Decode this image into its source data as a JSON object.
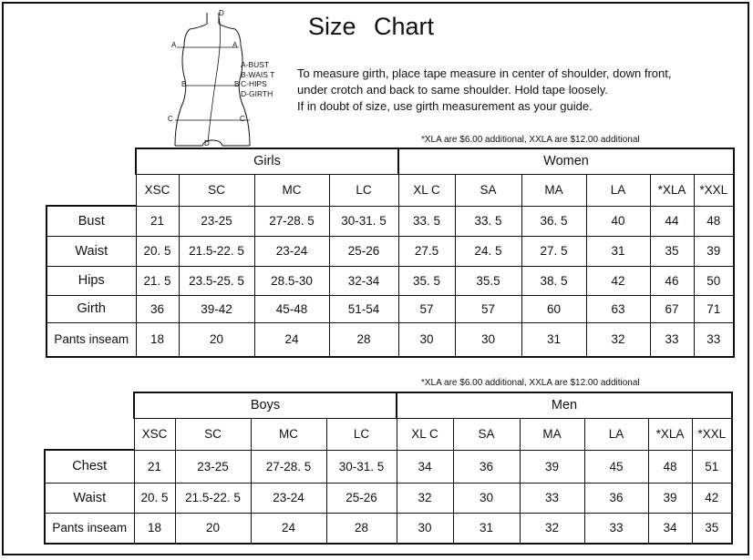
{
  "title": "Size Chart",
  "instructions": [
    "To measure girth, place tape measure in center of shoulder, down front,",
    "under crotch and back to same shoulder. Hold tape loosely.",
    "If in doubt of size, use girth measurement as your guide."
  ],
  "figure": {
    "markers": [
      "A",
      "A",
      "B",
      "B",
      "C",
      "C",
      "D",
      "D"
    ],
    "legend": [
      "A-BUST",
      "B-WAIS T",
      "C-HIPS",
      "D-GIRTH"
    ]
  },
  "tables": [
    {
      "note": "*XLA are $6.00 additional, XXLA are $12.00 additional",
      "groups": [
        "Girls",
        "Women"
      ],
      "sizes": [
        "XSC",
        "SC",
        "MC",
        "LC",
        "XL C",
        "SA",
        "MA",
        "LA",
        "*XLA",
        "*XXL"
      ],
      "rows": [
        {
          "label": "Bust",
          "values": [
            "21",
            "23-25",
            "27-28. 5",
            "30-31. 5",
            "33. 5",
            "33. 5",
            "36. 5",
            "40",
            "44",
            "48"
          ]
        },
        {
          "label": "Waist",
          "values": [
            "20. 5",
            "21.5-22. 5",
            "23-24",
            "25-26",
            "27.5",
            "24. 5",
            "27. 5",
            "31",
            "35",
            "39"
          ]
        },
        {
          "label": "Hips",
          "values": [
            "21. 5",
            "23.5-25. 5",
            "28.5-30",
            "32-34",
            "35. 5",
            "35.5",
            "38. 5",
            "42",
            "46",
            "50"
          ]
        },
        {
          "label": "Girth",
          "values": [
            "36",
            "39-42",
            "45-48",
            "51-54",
            "57",
            "57",
            "60",
            "63",
            "67",
            "71"
          ]
        },
        {
          "label": "Pants inseam",
          "values": [
            "18",
            "20",
            "24",
            "28",
            "30",
            "30",
            "31",
            "32",
            "33",
            "33"
          ]
        }
      ]
    },
    {
      "note": "*XLA are $6.00 additional, XXLA are $12.00 additional",
      "groups": [
        "Boys",
        "Men"
      ],
      "sizes": [
        "XSC",
        "SC",
        "MC",
        "LC",
        "XL C",
        "SA",
        "MA",
        "LA",
        "*XLA",
        "*XXL"
      ],
      "rows": [
        {
          "label": "Chest",
          "values": [
            "21",
            "23-25",
            "27-28. 5",
            "30-31. 5",
            "34",
            "36",
            "39",
            "45",
            "48",
            "51"
          ]
        },
        {
          "label": "Waist",
          "values": [
            "20. 5",
            "21.5-22. 5",
            "23-24",
            "25-26",
            "32",
            "30",
            "33",
            "36",
            "39",
            "42"
          ]
        },
        {
          "label": "Pants inseam",
          "values": [
            "18",
            "20",
            "24",
            "28",
            "30",
            "31",
            "32",
            "33",
            "34",
            "35"
          ]
        }
      ]
    }
  ]
}
